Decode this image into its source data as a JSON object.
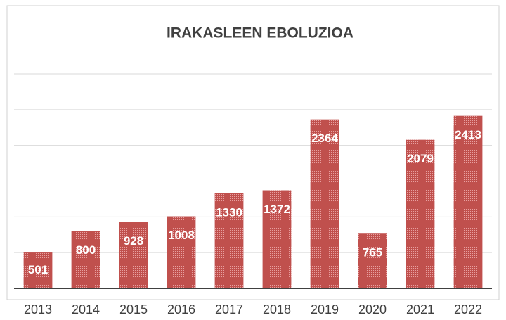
{
  "chart_data": {
    "type": "bar",
    "title": "IRAKASLEEN EBOLUZIOA",
    "categories": [
      "2013",
      "2014",
      "2015",
      "2016",
      "2017",
      "2018",
      "2019",
      "2020",
      "2021",
      "2022"
    ],
    "values": [
      501,
      800,
      928,
      1008,
      1330,
      1372,
      2364,
      765,
      2079,
      2413
    ],
    "color": "#c0504d",
    "ylim": [
      0,
      3000
    ],
    "yticks": [
      0,
      500,
      1000,
      1500,
      2000,
      2500,
      3000
    ],
    "grid": true
  }
}
